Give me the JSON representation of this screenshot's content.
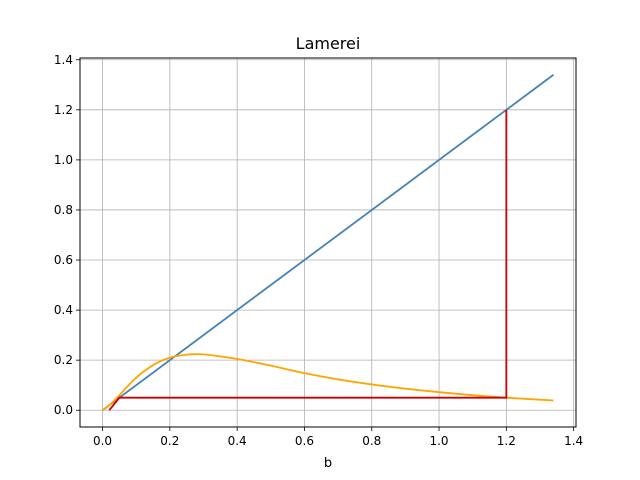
{
  "chart_data": {
    "type": "line",
    "title": "Lamerei",
    "xlabel": "b",
    "ylabel": "",
    "xlim": [
      -0.067,
      1.407
    ],
    "ylim": [
      -0.067,
      1.407
    ],
    "grid": true,
    "xticks": [
      0.0,
      0.2,
      0.4,
      0.6,
      0.8,
      1.0,
      1.2,
      1.4
    ],
    "yticks": [
      0.0,
      0.2,
      0.4,
      0.6,
      0.8,
      1.0,
      1.2,
      1.4
    ],
    "xtick_labels": [
      "0.0",
      "0.2",
      "0.4",
      "0.6",
      "0.8",
      "1.0",
      "1.2",
      "1.4"
    ],
    "ytick_labels": [
      "0.0",
      "0.2",
      "0.4",
      "0.6",
      "0.8",
      "1.0",
      "1.2",
      "1.4"
    ],
    "series": [
      {
        "color": "#4682b4",
        "x": [
          0.0,
          1.34
        ],
        "y": [
          0.0,
          1.34
        ]
      },
      {
        "color": "#ffa500",
        "x": [
          0.0,
          0.02,
          0.05,
          0.1,
          0.15,
          0.2,
          0.25,
          0.28,
          0.3,
          0.35,
          0.4,
          0.5,
          0.6,
          0.7,
          0.8,
          0.9,
          1.0,
          1.1,
          1.2,
          1.34
        ],
        "y": [
          0.0,
          0.02,
          0.06,
          0.13,
          0.18,
          0.21,
          0.222,
          0.224,
          0.223,
          0.215,
          0.205,
          0.178,
          0.148,
          0.123,
          0.103,
          0.086,
          0.072,
          0.06,
          0.05,
          0.039
        ]
      },
      {
        "color": "#cc0000",
        "x": [
          0.02,
          0.05,
          1.2,
          1.2
        ],
        "y": [
          0.0,
          0.05,
          0.05,
          1.2
        ]
      }
    ]
  }
}
